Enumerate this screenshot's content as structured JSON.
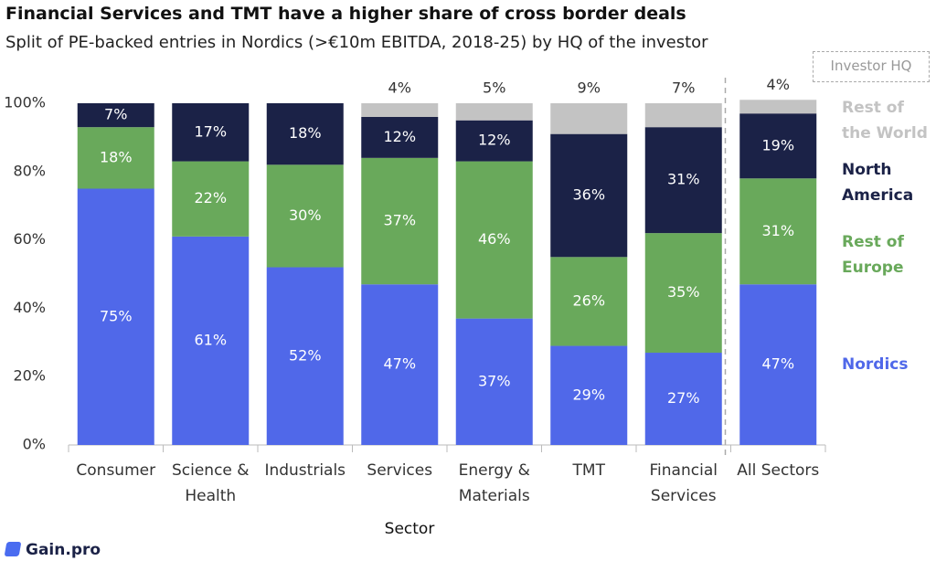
{
  "chart_data": {
    "type": "stacked_bar",
    "title": "Financial Services and TMT have a higher share of cross border deals",
    "subtitle": "Split of PE-backed entries in Nordics (>€10m EBITDA, 2018-25) by HQ of the investor",
    "x_label": "Sector",
    "legend_title": "Investor HQ",
    "footer": "Gain.pro",
    "categories": [
      "Consumer",
      "Science & Health",
      "Industrials",
      "Services",
      "Energy & Materials",
      "TMT",
      "Financial Services",
      "All Sectors"
    ],
    "series": [
      {
        "name": "Nordics",
        "color": "#5068e9",
        "values": [
          75,
          61,
          52,
          47,
          37,
          29,
          27,
          47
        ],
        "value_labels": [
          "75%",
          "61%",
          "52%",
          "47%",
          "37%",
          "29%",
          "27%",
          "47%"
        ]
      },
      {
        "name": "Rest of Europe",
        "color": "#69a95b",
        "values": [
          18,
          22,
          30,
          37,
          46,
          26,
          35,
          31
        ],
        "value_labels": [
          "18%",
          "22%",
          "30%",
          "37%",
          "46%",
          "26%",
          "35%",
          "31%"
        ]
      },
      {
        "name": "North America",
        "color": "#1b2247",
        "values": [
          7,
          17,
          18,
          12,
          12,
          36,
          31,
          19
        ],
        "value_labels": [
          "7%",
          "17%",
          "18%",
          "12%",
          "12%",
          "36%",
          "31%",
          "19%"
        ]
      },
      {
        "name": "Rest of the World",
        "color": "#c3c3c3",
        "values": [
          null,
          null,
          null,
          4,
          5,
          9,
          7,
          4
        ],
        "value_labels": [
          null,
          null,
          null,
          "4%",
          "5%",
          "9%",
          "7%",
          "4%"
        ]
      }
    ],
    "ylim": [
      0,
      100
    ],
    "yticks": [
      {
        "value": 0,
        "label": "0%"
      },
      {
        "value": 20,
        "label": "20%"
      },
      {
        "value": 40,
        "label": "40%"
      },
      {
        "value": 60,
        "label": "60%"
      },
      {
        "value": 80,
        "label": "80%"
      },
      {
        "value": 100,
        "label": "100%"
      }
    ]
  }
}
